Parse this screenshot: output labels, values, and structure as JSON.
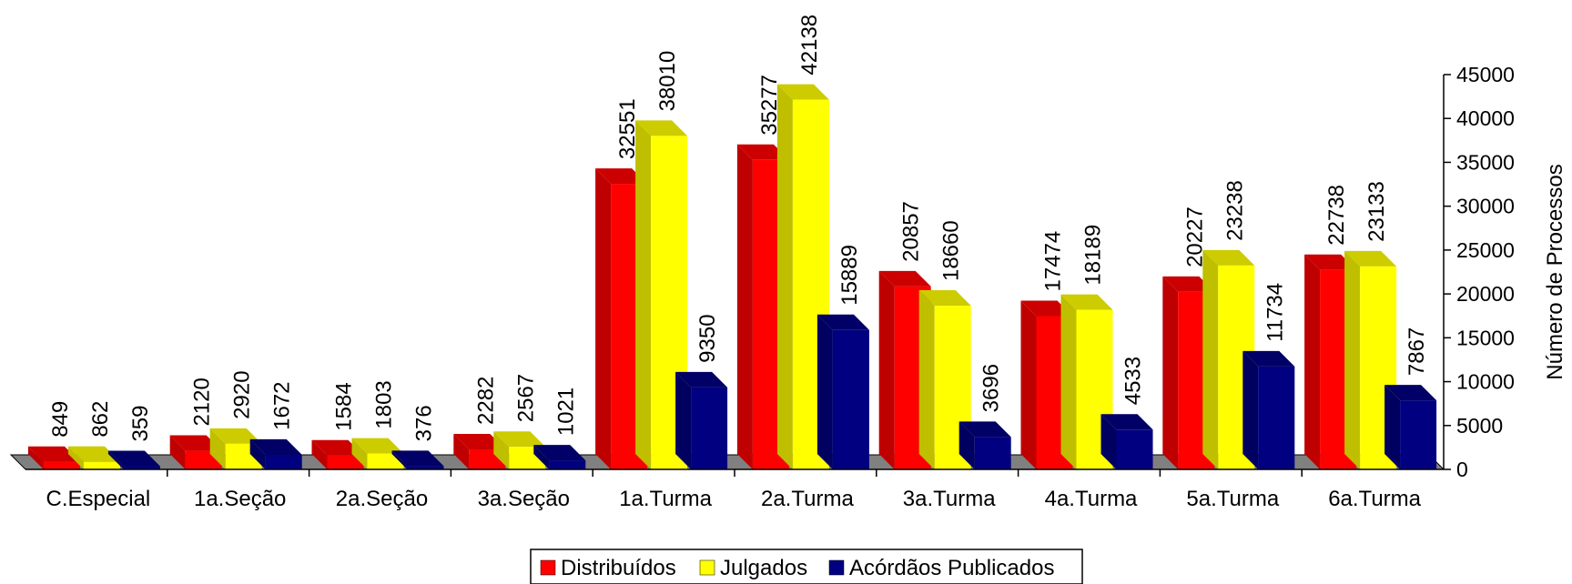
{
  "chart_data": {
    "type": "bar",
    "categories": [
      "C.Especial",
      "1a.Seção",
      "2a.Seção",
      "3a.Seção",
      "1a.Turma",
      "2a.Turma",
      "3a.Turma",
      "4a.Turma",
      "5a.Turma",
      "6a.Turma"
    ],
    "series": [
      {
        "name": "Distribuídos",
        "values": [
          849,
          2120,
          1584,
          2282,
          32551,
          35277,
          20857,
          17474,
          20227,
          22738
        ]
      },
      {
        "name": "Julgados",
        "values": [
          862,
          2920,
          1803,
          2567,
          38010,
          42138,
          18660,
          18189,
          23238,
          23133
        ]
      },
      {
        "name": "Acórdãos Publicados",
        "values": [
          359,
          1672,
          376,
          1021,
          9350,
          15889,
          3696,
          4533,
          11734,
          7867
        ]
      }
    ],
    "ylabel": "Número de Processos",
    "ylim": [
      0,
      45000
    ],
    "yticks": [
      0,
      5000,
      10000,
      15000,
      20000,
      25000,
      30000,
      35000,
      40000,
      45000
    ],
    "y_axis_side": "right",
    "legend_position": "bottom-center",
    "style": "3d-clustered-column",
    "colors": {
      "Distribuídos": "#ff0000",
      "Julgados": "#ffff00",
      "Acórdãos Publicados": "#000080",
      "floor": "#808080"
    }
  }
}
